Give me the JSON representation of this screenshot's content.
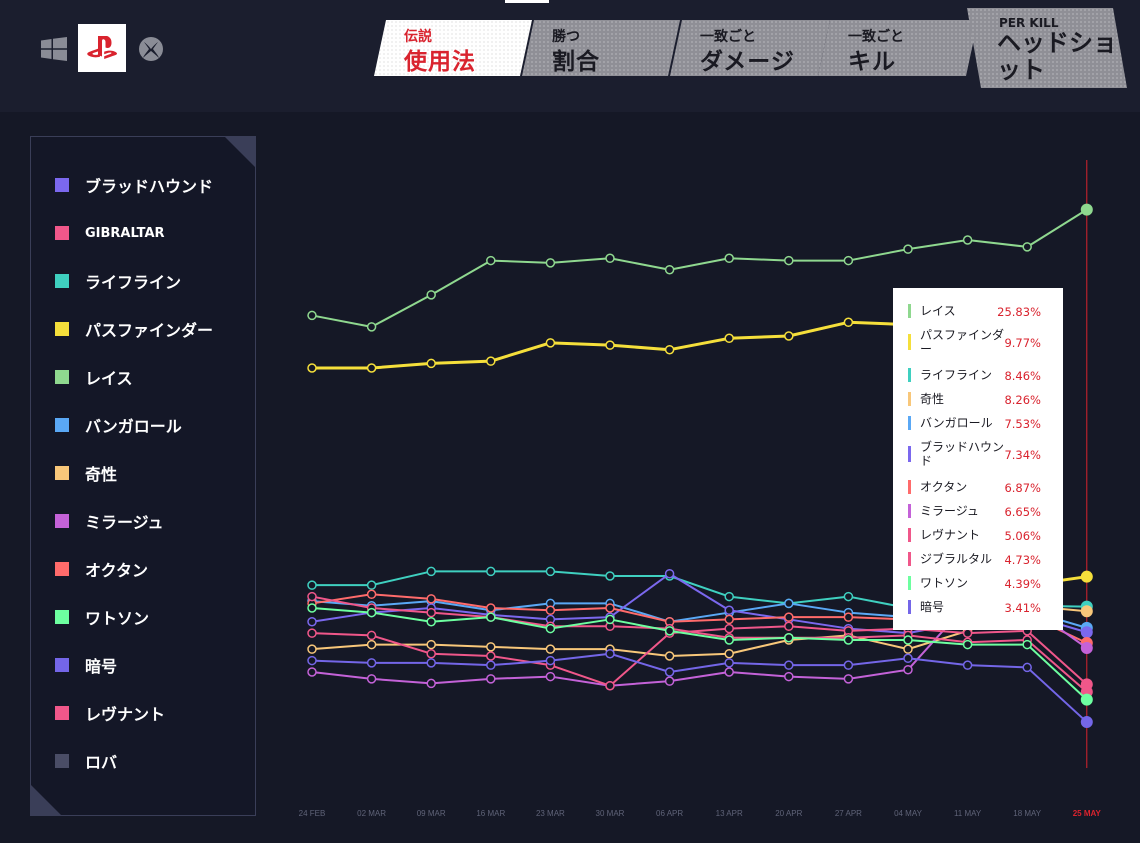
{
  "platforms": {
    "windows_icon": "windows-icon",
    "playstation_icon": "playstation-icon",
    "xbox_icon": "xbox-icon",
    "selected": "playstation"
  },
  "tabs": [
    {
      "line1": "伝説",
      "line2": "使用法",
      "active": true
    },
    {
      "line1": "勝つ",
      "line2": "割合",
      "active": false
    },
    {
      "line1": "一致ごと",
      "line2": "ダメージ",
      "active": false
    },
    {
      "line1": "一致ごと",
      "line2": "キル",
      "active": false
    },
    {
      "line1": "PER KILL",
      "line2": "ヘッドショット",
      "active": false
    }
  ],
  "legend": [
    {
      "label": "ブラッドハウンド",
      "color": "#7b68ee"
    },
    {
      "label": "GIBRALTAR",
      "color": "#f0578a"
    },
    {
      "label": "ライフライン",
      "color": "#3fd0c0"
    },
    {
      "label": "パスファインダー",
      "color": "#f5df3b"
    },
    {
      "label": "レイス",
      "color": "#8fd88f"
    },
    {
      "label": "バンガロール",
      "color": "#5aa8f5"
    },
    {
      "label": "奇性",
      "color": "#f8c77a"
    },
    {
      "label": "ミラージュ",
      "color": "#c462d8"
    },
    {
      "label": "オクタン",
      "color": "#ff6b6b"
    },
    {
      "label": "ワトソン",
      "color": "#6dffa0"
    },
    {
      "label": "暗号",
      "color": "#7466e8"
    },
    {
      "label": "レヴナント",
      "color": "#f0578a"
    },
    {
      "label": "ロバ",
      "color": "#4a4d66"
    }
  ],
  "tooltip": [
    {
      "name": "レイス",
      "value": "25.83%",
      "color": "#8fd88f"
    },
    {
      "name": "パスファインダー",
      "value": "9.77%",
      "color": "#f5df3b"
    },
    {
      "name": "ライフライン",
      "value": "8.46%",
      "color": "#3fd0c0"
    },
    {
      "name": "奇性",
      "value": "8.26%",
      "color": "#f8c77a"
    },
    {
      "name": "バンガロール",
      "value": "7.53%",
      "color": "#5aa8f5"
    },
    {
      "name": "ブラッドハウンド",
      "value": "7.34%",
      "color": "#7b68ee"
    },
    {
      "name": "オクタン",
      "value": "6.87%",
      "color": "#ff6b6b"
    },
    {
      "name": "ミラージュ",
      "value": "6.65%",
      "color": "#c462d8"
    },
    {
      "name": "レヴナント",
      "value": "5.06%",
      "color": "#f0578a"
    },
    {
      "name": "ジブラルタル",
      "value": "4.73%",
      "color": "#f0578a"
    },
    {
      "name": "ワトソン",
      "value": "4.39%",
      "color": "#6dffa0"
    },
    {
      "name": "暗号",
      "value": "3.41%",
      "color": "#7466e8"
    }
  ],
  "chart_data": {
    "type": "line",
    "title": "",
    "xlabel": "",
    "ylabel": "",
    "ylim": [
      0,
      28
    ],
    "grid": false,
    "highlight_category": "25 MAY",
    "highlight_color": "#d9232e",
    "categories": [
      "24 FEB",
      "02 MAR",
      "09 MAR",
      "16 MAR",
      "23 MAR",
      "30 MAR",
      "06 APR",
      "13 APR",
      "20 APR",
      "27 APR",
      "04 MAY",
      "11 MAY",
      "18 MAY",
      "25 MAY"
    ],
    "series": [
      {
        "name": "レイス",
        "color": "#8fd88f",
        "width": 2,
        "values": [
          21.2,
          20.7,
          22.1,
          23.6,
          23.5,
          23.7,
          23.2,
          23.7,
          23.6,
          23.6,
          24.1,
          24.5,
          24.2,
          25.83
        ]
      },
      {
        "name": "パスファインダー",
        "color": "#f5df3b",
        "width": 3,
        "values": [
          18.9,
          18.9,
          19.1,
          19.2,
          20.0,
          19.9,
          19.7,
          20.2,
          20.3,
          20.9,
          20.8,
          21.0,
          9.4,
          9.77
        ]
      },
      {
        "name": "ライフライン",
        "color": "#3fd0c0",
        "width": 2,
        "values": [
          9.4,
          9.4,
          10.0,
          10.0,
          10.0,
          9.8,
          9.8,
          8.9,
          8.6,
          8.9,
          8.4,
          8.6,
          8.5,
          8.46
        ]
      },
      {
        "name": "奇性",
        "color": "#f8c77a",
        "width": 2,
        "values": [
          6.6,
          6.8,
          6.8,
          6.7,
          6.6,
          6.6,
          6.3,
          6.4,
          7.0,
          7.2,
          6.6,
          7.4,
          8.5,
          8.26
        ]
      },
      {
        "name": "バンガロール",
        "color": "#5aa8f5",
        "width": 2,
        "values": [
          8.7,
          8.5,
          8.7,
          8.3,
          8.6,
          8.6,
          7.8,
          8.2,
          8.6,
          8.2,
          8.0,
          8.3,
          8.3,
          7.53
        ]
      },
      {
        "name": "ブラッドハウンド",
        "color": "#7b68ee",
        "width": 2,
        "values": [
          7.8,
          8.2,
          8.4,
          8.1,
          7.9,
          8.0,
          9.9,
          8.3,
          7.9,
          7.5,
          7.3,
          7.8,
          8.1,
          7.34
        ]
      },
      {
        "name": "オクタン",
        "color": "#ff6b6b",
        "width": 2,
        "values": [
          8.6,
          9.0,
          8.8,
          8.4,
          8.3,
          8.4,
          7.8,
          7.9,
          8.0,
          8.0,
          7.9,
          8.0,
          8.1,
          6.87
        ]
      },
      {
        "name": "ミラージュ",
        "color": "#c462d8",
        "width": 2,
        "values": [
          5.6,
          5.3,
          5.1,
          5.3,
          5.4,
          5.0,
          5.2,
          5.6,
          5.4,
          5.3,
          5.7,
          8.6,
          8.5,
          6.65
        ]
      },
      {
        "name": "レヴナント",
        "color": "#f0578a",
        "width": 2,
        "values": [
          7.3,
          7.2,
          6.4,
          6.3,
          5.9,
          5.0,
          7.3,
          7.5,
          7.6,
          7.4,
          7.5,
          7.3,
          7.4,
          5.06
        ]
      },
      {
        "name": "ジブラルタル",
        "color": "#f0578a",
        "width": 2,
        "values": [
          8.9,
          8.4,
          8.2,
          8.0,
          7.6,
          7.6,
          7.5,
          7.1,
          7.1,
          7.1,
          7.2,
          6.9,
          7.0,
          4.73
        ]
      },
      {
        "name": "ワトソン",
        "color": "#6dffa0",
        "width": 2,
        "values": [
          8.4,
          8.2,
          7.8,
          8.0,
          7.5,
          7.9,
          7.4,
          7.0,
          7.1,
          7.0,
          7.0,
          6.8,
          6.8,
          4.39
        ]
      },
      {
        "name": "暗号",
        "color": "#7466e8",
        "width": 2,
        "values": [
          6.1,
          6.0,
          6.0,
          5.9,
          6.1,
          6.4,
          5.6,
          6.0,
          5.9,
          5.9,
          6.2,
          5.9,
          5.8,
          3.41
        ]
      }
    ]
  }
}
